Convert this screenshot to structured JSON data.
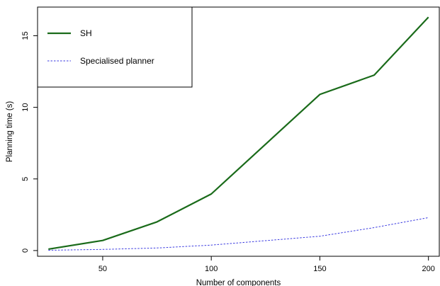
{
  "chart_data": {
    "type": "line",
    "xlabel": "Number of components",
    "ylabel": "Planning time (s)",
    "xlim": [
      20,
      205
    ],
    "ylim": [
      -0.4,
      17
    ],
    "x_ticks": [
      50,
      100,
      150,
      200
    ],
    "y_ticks": [
      0,
      5,
      10,
      15
    ],
    "grid": false,
    "legend_position": "top-left",
    "series": [
      {
        "name": "SH",
        "color": "#1a6b1a",
        "style": "solid",
        "x": [
          25,
          50,
          75,
          100,
          150,
          175,
          200
        ],
        "values": [
          0.1,
          0.7,
          2.0,
          3.95,
          10.9,
          12.25,
          16.3
        ]
      },
      {
        "name": "Specialised planner",
        "color": "#3a3ae0",
        "style": "dotted",
        "x": [
          25,
          50,
          75,
          100,
          150,
          175,
          200
        ],
        "values": [
          0.02,
          0.08,
          0.18,
          0.38,
          1.0,
          1.6,
          2.3
        ]
      }
    ]
  }
}
